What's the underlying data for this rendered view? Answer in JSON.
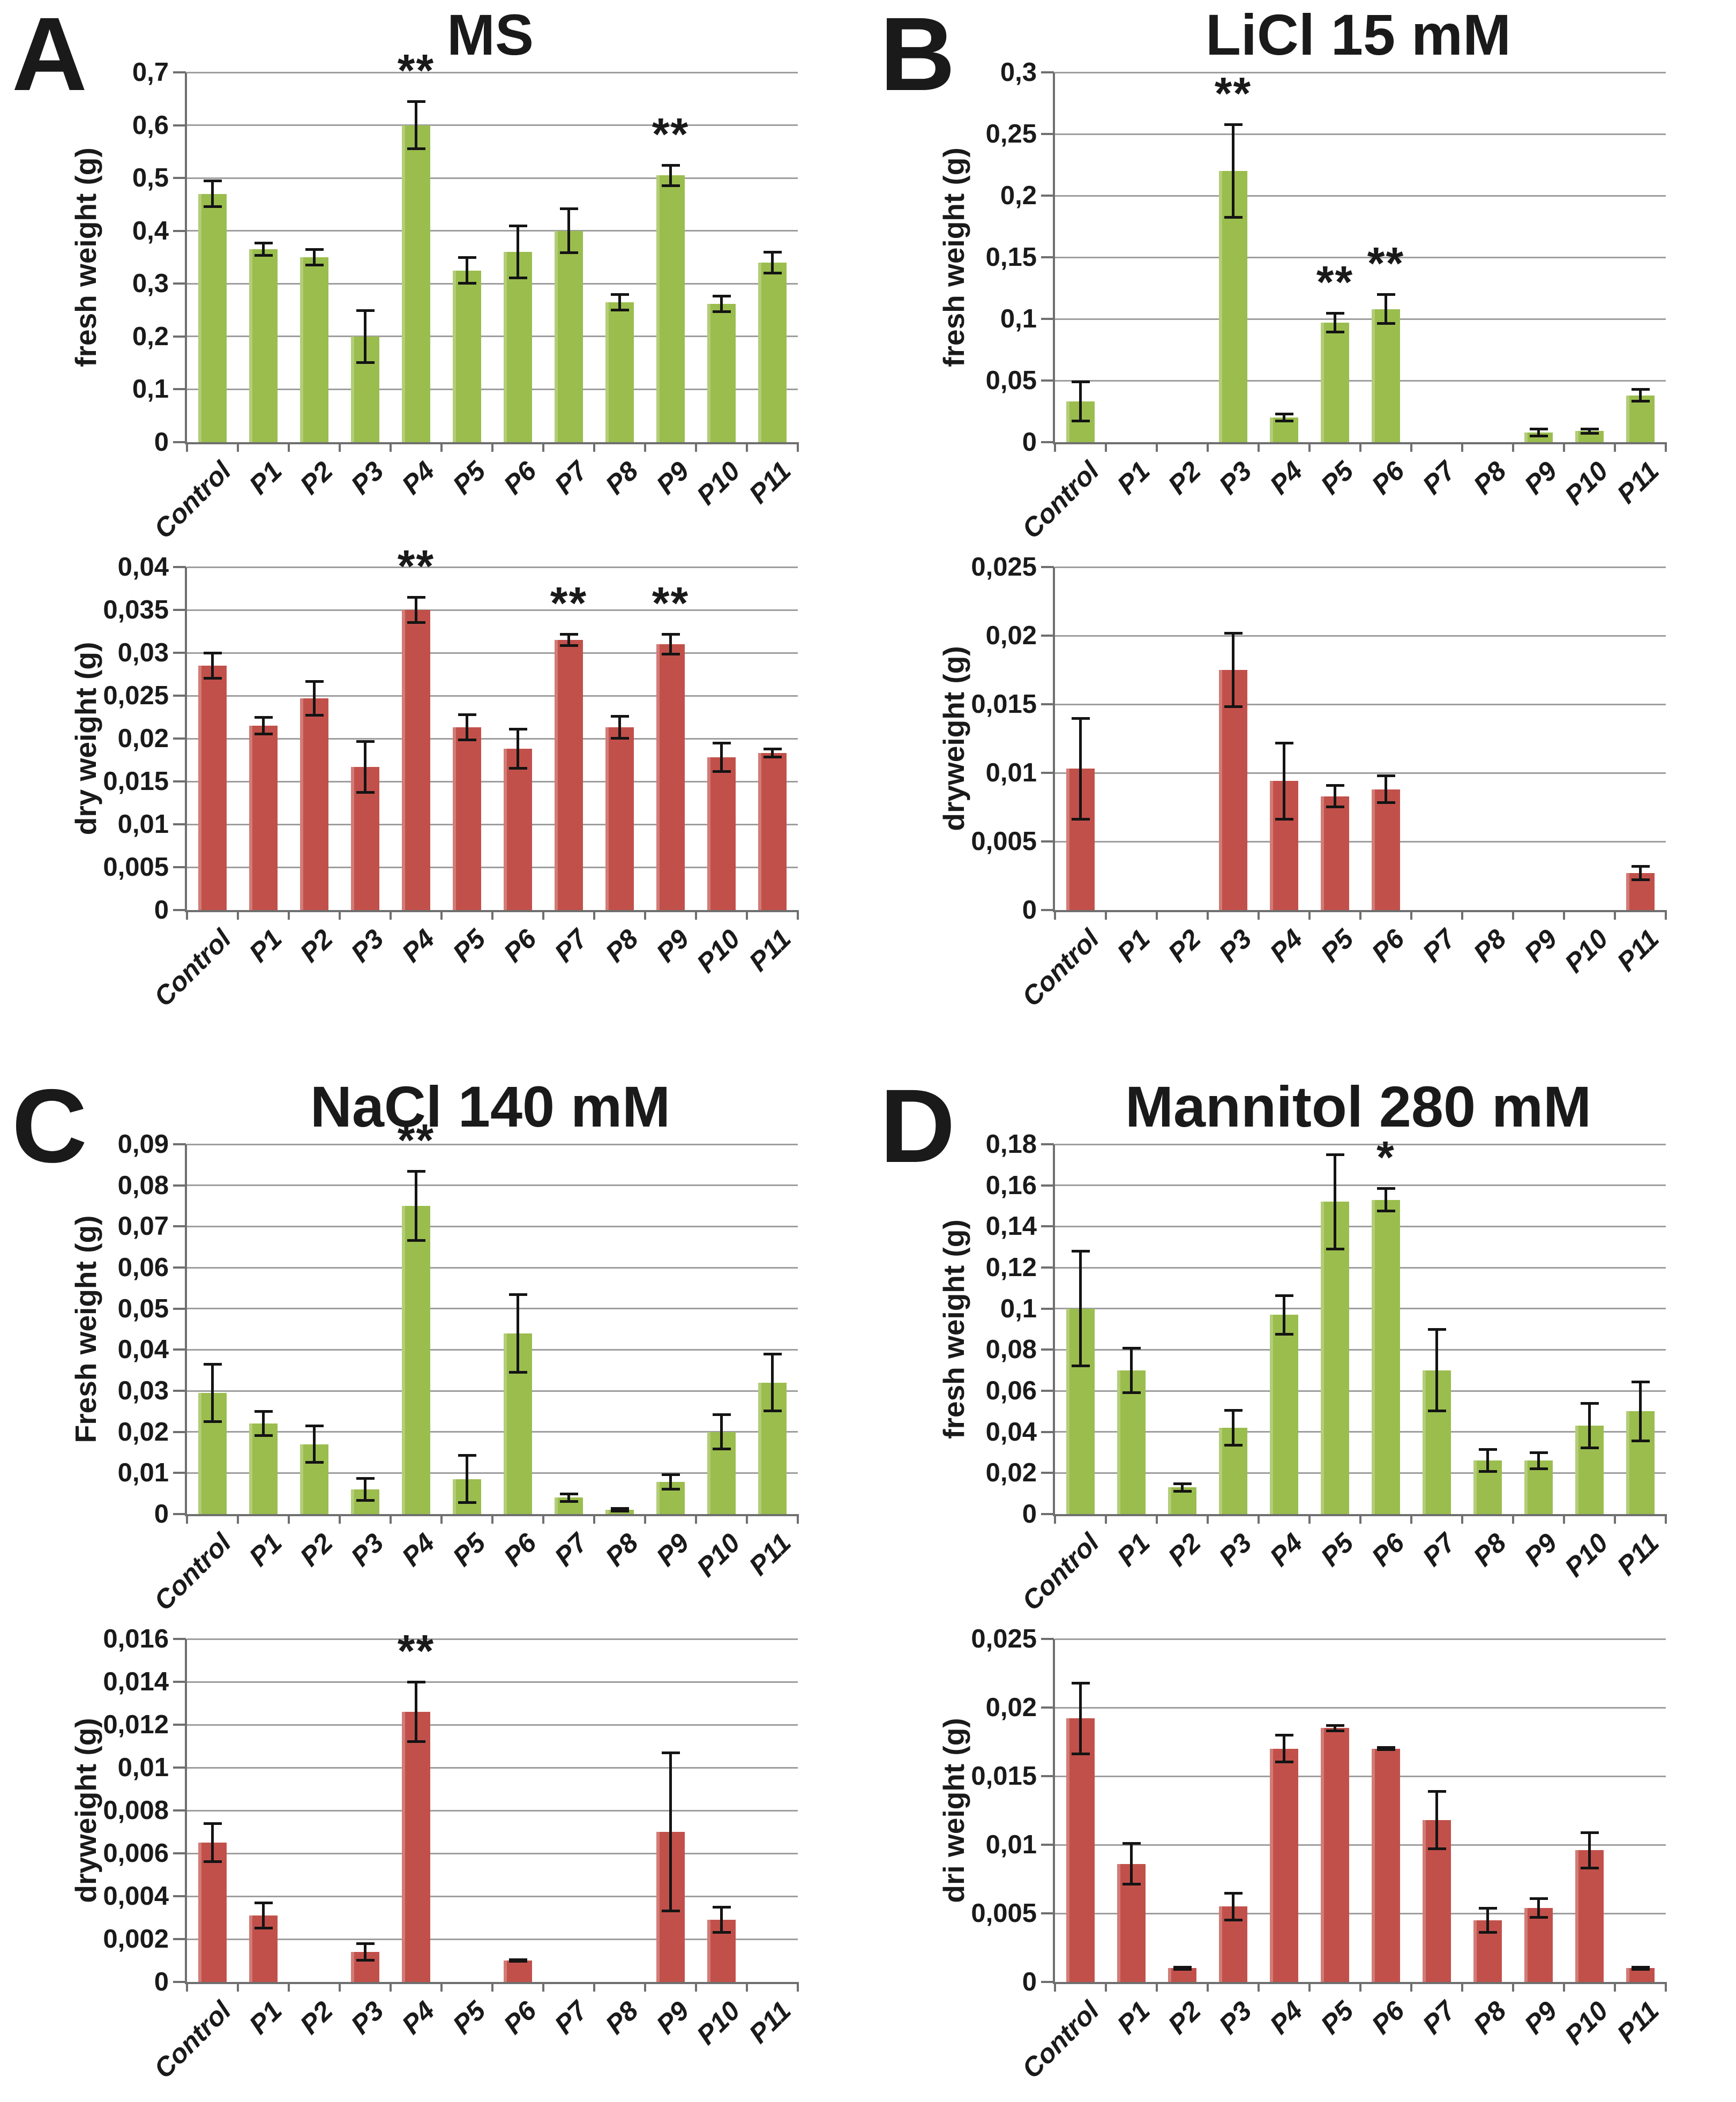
{
  "figure": {
    "panels": [
      {
        "letter": "A",
        "title": "MS"
      },
      {
        "letter": "B",
        "title": "LiCl 15 mM"
      },
      {
        "letter": "C",
        "title": "NaCl 140 mM"
      },
      {
        "letter": "D",
        "title": "Mannitol 280 mM"
      }
    ]
  },
  "colors": {
    "fresh_bar": "#9abd4d",
    "dry_bar": "#c2504a",
    "gridline": "#9e9e9e",
    "axis": "#6f6f6f",
    "error_bar": "#141414",
    "text": "#1a1a1a"
  },
  "chart_data": [
    {
      "panel": "A",
      "weight_type": "fresh",
      "type": "bar",
      "title": "MS",
      "ylabel": "fresh weight (g)",
      "xlabel": "",
      "ylim": [
        0,
        0.7
      ],
      "yticks": [
        0,
        0.1,
        0.2,
        0.3,
        0.4,
        0.5,
        0.6,
        0.7
      ],
      "ytick_labels": [
        "0",
        "0,1",
        "0,2",
        "0,3",
        "0,4",
        "0,5",
        "0,6",
        "0,7"
      ],
      "categories": [
        "Control",
        "P1",
        "P2",
        "P3",
        "P4",
        "P5",
        "P6",
        "P7",
        "P8",
        "P9",
        "P10",
        "P11"
      ],
      "values": [
        0.47,
        0.365,
        0.35,
        0.2,
        0.6,
        0.325,
        0.36,
        0.4,
        0.265,
        0.505,
        0.262,
        0.34
      ],
      "errors": [
        0.025,
        0.012,
        0.015,
        0.05,
        0.045,
        0.025,
        0.05,
        0.042,
        0.015,
        0.02,
        0.015,
        0.02
      ],
      "significance": [
        "",
        "",
        "",
        "",
        "**",
        "",
        "",
        "",
        "",
        "**",
        "",
        ""
      ],
      "bar_color": "#9abd4d",
      "grid": true,
      "legend": "none"
    },
    {
      "panel": "A",
      "weight_type": "dry",
      "type": "bar",
      "title": "MS",
      "ylabel": "dry weight (g)",
      "xlabel": "",
      "ylim": [
        0,
        0.04
      ],
      "yticks": [
        0,
        0.005,
        0.01,
        0.015,
        0.02,
        0.025,
        0.03,
        0.035,
        0.04
      ],
      "ytick_labels": [
        "0",
        "0,005",
        "0,01",
        "0,015",
        "0,02",
        "0,025",
        "0,03",
        "0,035",
        "0,04"
      ],
      "categories": [
        "Control",
        "P1",
        "P2",
        "P3",
        "P4",
        "P5",
        "P6",
        "P7",
        "P8",
        "P9",
        "P10",
        "P11"
      ],
      "values": [
        0.0285,
        0.0215,
        0.0247,
        0.0167,
        0.035,
        0.0213,
        0.0188,
        0.0315,
        0.0213,
        0.031,
        0.0178,
        0.0183
      ],
      "errors": [
        0.0015,
        0.001,
        0.002,
        0.003,
        0.0015,
        0.0015,
        0.0023,
        0.0007,
        0.0013,
        0.0012,
        0.0017,
        0.0005
      ],
      "significance": [
        "",
        "",
        "",
        "",
        "**",
        "",
        "",
        "**",
        "",
        "**",
        "",
        ""
      ],
      "bar_color": "#c2504a",
      "grid": true,
      "legend": "none"
    },
    {
      "panel": "B",
      "weight_type": "fresh",
      "type": "bar",
      "title": "LiCl 15 mM",
      "ylabel": "fresh weight (g)",
      "xlabel": "",
      "ylim": [
        0,
        0.3
      ],
      "yticks": [
        0,
        0.05,
        0.1,
        0.15,
        0.2,
        0.25,
        0.3
      ],
      "ytick_labels": [
        "0",
        "0,05",
        "0,1",
        "0,15",
        "0,2",
        "0,25",
        "0,3"
      ],
      "categories": [
        "Control",
        "P1",
        "P2",
        "P3",
        "P4",
        "P5",
        "P6",
        "P7",
        "P8",
        "P9",
        "P10",
        "P11"
      ],
      "values": [
        0.033,
        0,
        0,
        0.22,
        0.02,
        0.097,
        0.108,
        0,
        0,
        0.008,
        0.009,
        0.038
      ],
      "errors": [
        0.016,
        0,
        0,
        0.038,
        0.003,
        0.008,
        0.012,
        0,
        0,
        0.003,
        0.002,
        0.005
      ],
      "significance": [
        "",
        "",
        "",
        "**",
        "",
        "**",
        "**",
        "",
        "",
        "",
        "",
        ""
      ],
      "bar_color": "#9abd4d",
      "grid": true,
      "legend": "none"
    },
    {
      "panel": "B",
      "weight_type": "dry",
      "type": "bar",
      "title": "LiCl 15 mM",
      "ylabel": "dryweight (g)",
      "xlabel": "",
      "ylim": [
        0,
        0.025
      ],
      "yticks": [
        0,
        0.005,
        0.01,
        0.015,
        0.02,
        0.025
      ],
      "ytick_labels": [
        "0",
        "0,005",
        "0,01",
        "0,015",
        "0,02",
        "0,025"
      ],
      "categories": [
        "Control",
        "P1",
        "P2",
        "P3",
        "P4",
        "P5",
        "P6",
        "P7",
        "P8",
        "P9",
        "P10",
        "P11"
      ],
      "values": [
        0.0103,
        0,
        0,
        0.0175,
        0.0094,
        0.0083,
        0.0088,
        0,
        0,
        0,
        0,
        0.0027
      ],
      "errors": [
        0.0037,
        0,
        0,
        0.0027,
        0.0028,
        0.0008,
        0.001,
        0,
        0,
        0,
        0,
        0.0005
      ],
      "significance": [
        "",
        "",
        "",
        "",
        "",
        "",
        "",
        "",
        "",
        "",
        "",
        ""
      ],
      "bar_color": "#c2504a",
      "grid": true,
      "legend": "none"
    },
    {
      "panel": "C",
      "weight_type": "fresh",
      "type": "bar",
      "title": "NaCl 140 mM",
      "ylabel": "Fresh weight (g)",
      "xlabel": "",
      "ylim": [
        0,
        0.09
      ],
      "yticks": [
        0,
        0.01,
        0.02,
        0.03,
        0.04,
        0.05,
        0.06,
        0.07,
        0.08,
        0.09
      ],
      "ytick_labels": [
        "0",
        "0,01",
        "0,02",
        "0,03",
        "0,04",
        "0,05",
        "0,06",
        "0,07",
        "0,08",
        "0,09"
      ],
      "categories": [
        "Control",
        "P1",
        "P2",
        "P3",
        "P4",
        "P5",
        "P6",
        "P7",
        "P8",
        "P9",
        "P10",
        "P11"
      ],
      "values": [
        0.0295,
        0.022,
        0.017,
        0.006,
        0.075,
        0.0085,
        0.044,
        0.004,
        0.001,
        0.0078,
        0.02,
        0.032
      ],
      "errors": [
        0.007,
        0.003,
        0.0045,
        0.0028,
        0.0085,
        0.0058,
        0.0095,
        0.001,
        0.0004,
        0.0018,
        0.0042,
        0.007
      ],
      "significance": [
        "",
        "",
        "",
        "",
        "**",
        "",
        "",
        "",
        "",
        "",
        "",
        ""
      ],
      "bar_color": "#9abd4d",
      "grid": true,
      "legend": "none"
    },
    {
      "panel": "C",
      "weight_type": "dry",
      "type": "bar",
      "title": "NaCl 140 mM",
      "ylabel": "dryweight (g)",
      "xlabel": "",
      "ylim": [
        0,
        0.016
      ],
      "yticks": [
        0,
        0.002,
        0.004,
        0.006,
        0.008,
        0.01,
        0.012,
        0.014,
        0.016
      ],
      "ytick_labels": [
        "0",
        "0,002",
        "0,004",
        "0,006",
        "0,008",
        "0,01",
        "0,012",
        "0,014",
        "0,016"
      ],
      "categories": [
        "Control",
        "P1",
        "P2",
        "P3",
        "P4",
        "P5",
        "P6",
        "P7",
        "P8",
        "P9",
        "P10",
        "P11"
      ],
      "values": [
        0.0065,
        0.0031,
        0,
        0.0014,
        0.0126,
        0,
        0.001,
        0,
        0,
        0.007,
        0.0029,
        0
      ],
      "errors": [
        0.0009,
        0.0006,
        0,
        0.0004,
        0.0014,
        0,
        5e-05,
        0,
        0,
        0.0037,
        0.0006,
        0
      ],
      "significance": [
        "",
        "",
        "",
        "",
        "**",
        "",
        "",
        "",
        "",
        "",
        "",
        ""
      ],
      "bar_color": "#c2504a",
      "grid": true,
      "legend": "none"
    },
    {
      "panel": "D",
      "weight_type": "fresh",
      "type": "bar",
      "title": "Mannitol 280 mM",
      "ylabel": "fresh weight (g)",
      "xlabel": "",
      "ylim": [
        0,
        0.18
      ],
      "yticks": [
        0,
        0.02,
        0.04,
        0.06,
        0.08,
        0.1,
        0.12,
        0.14,
        0.16,
        0.18
      ],
      "ytick_labels": [
        "0",
        "0,02",
        "0,04",
        "0,06",
        "0,08",
        "0,1",
        "0,12",
        "0,14",
        "0,16",
        "0,18"
      ],
      "categories": [
        "Control",
        "P1",
        "P2",
        "P3",
        "P4",
        "P5",
        "P6",
        "P7",
        "P8",
        "P9",
        "P10",
        "P11"
      ],
      "values": [
        0.1,
        0.07,
        0.013,
        0.042,
        0.097,
        0.152,
        0.153,
        0.07,
        0.026,
        0.026,
        0.043,
        0.05
      ],
      "errors": [
        0.028,
        0.011,
        0.002,
        0.0085,
        0.0095,
        0.023,
        0.0055,
        0.02,
        0.0055,
        0.004,
        0.011,
        0.0145
      ],
      "significance": [
        "",
        "",
        "",
        "",
        "",
        "",
        "*",
        "",
        "",
        "",
        "",
        ""
      ],
      "bar_color": "#9abd4d",
      "grid": true,
      "legend": "none"
    },
    {
      "panel": "D",
      "weight_type": "dry",
      "type": "bar",
      "title": "Mannitol 280 mM",
      "ylabel": "dri weight (g)",
      "xlabel": "",
      "ylim": [
        0,
        0.025
      ],
      "yticks": [
        0,
        0.005,
        0.01,
        0.015,
        0.02,
        0.025
      ],
      "ytick_labels": [
        "0",
        "0,005",
        "0,01",
        "0,015",
        "0,02",
        "0,025"
      ],
      "categories": [
        "Control",
        "P1",
        "P2",
        "P3",
        "P4",
        "P5",
        "P6",
        "P7",
        "P8",
        "P9",
        "P10",
        "P11"
      ],
      "values": [
        0.0192,
        0.0086,
        0.001,
        0.0055,
        0.017,
        0.0185,
        0.017,
        0.0118,
        0.0045,
        0.0054,
        0.0096,
        0.001
      ],
      "errors": [
        0.0026,
        0.0015,
        0.0001,
        0.001,
        0.001,
        0.0002,
        0.0001,
        0.0021,
        0.0009,
        0.0007,
        0.0013,
        0.0001
      ],
      "significance": [
        "",
        "",
        "",
        "",
        "",
        "",
        "",
        "",
        "",
        "",
        "",
        ""
      ],
      "bar_color": "#c2504a",
      "grid": true,
      "legend": "none"
    }
  ]
}
